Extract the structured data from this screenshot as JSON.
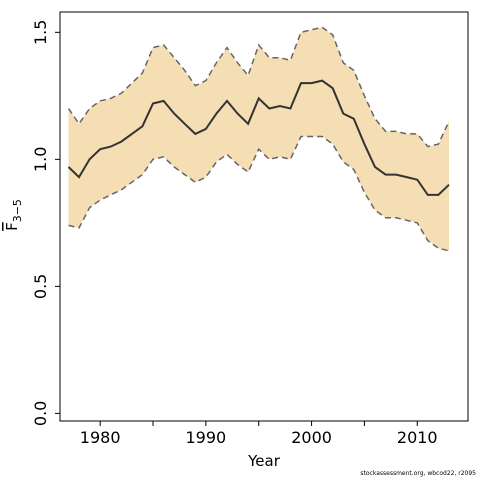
{
  "chart_data": {
    "type": "area",
    "title": "",
    "xlabel": "Year",
    "ylabel": "F",
    "ylabel_sub": "3−5",
    "xlim": [
      1976.2,
      2014.8
    ],
    "ylim": [
      -0.03,
      1.58
    ],
    "x_ticks": [
      1980,
      1990,
      2000,
      2010
    ],
    "y_ticks": [
      0.0,
      0.5,
      1.0,
      1.5
    ],
    "y_tick_labels": [
      "0.0",
      "0.5",
      "1.0",
      "1.5"
    ],
    "grid": false,
    "legend": "none",
    "colors": {
      "band": "#f5deb3",
      "line": "#333333",
      "bounds": "#666666"
    },
    "x": [
      1977,
      1978,
      1979,
      1980,
      1981,
      1982,
      1983,
      1984,
      1985,
      1986,
      1987,
      1988,
      1989,
      1990,
      1991,
      1992,
      1993,
      1994,
      1995,
      1996,
      1997,
      1998,
      1999,
      2000,
      2001,
      2002,
      2003,
      2004,
      2005,
      2006,
      2007,
      2008,
      2009,
      2010,
      2011,
      2012,
      2013
    ],
    "series": [
      {
        "role": "estimate",
        "values": [
          0.97,
          0.93,
          1.0,
          1.04,
          1.05,
          1.07,
          1.1,
          1.13,
          1.22,
          1.23,
          1.18,
          1.14,
          1.1,
          1.12,
          1.18,
          1.23,
          1.18,
          1.14,
          1.24,
          1.2,
          1.21,
          1.2,
          1.3,
          1.3,
          1.31,
          1.28,
          1.18,
          1.16,
          1.06,
          0.97,
          0.94,
          0.94,
          0.93,
          0.92,
          0.86,
          0.86,
          0.9
        ]
      },
      {
        "role": "upper",
        "values": [
          1.2,
          1.14,
          1.2,
          1.23,
          1.24,
          1.26,
          1.3,
          1.34,
          1.44,
          1.45,
          1.4,
          1.35,
          1.29,
          1.31,
          1.38,
          1.44,
          1.38,
          1.33,
          1.45,
          1.4,
          1.4,
          1.39,
          1.5,
          1.51,
          1.52,
          1.49,
          1.38,
          1.35,
          1.25,
          1.16,
          1.11,
          1.11,
          1.1,
          1.1,
          1.05,
          1.06,
          1.15
        ]
      },
      {
        "role": "lower",
        "values": [
          0.74,
          0.73,
          0.81,
          0.84,
          0.86,
          0.88,
          0.91,
          0.94,
          1.0,
          1.01,
          0.97,
          0.94,
          0.91,
          0.93,
          0.99,
          1.02,
          0.98,
          0.95,
          1.04,
          1.0,
          1.01,
          1.0,
          1.09,
          1.09,
          1.09,
          1.06,
          0.99,
          0.96,
          0.87,
          0.8,
          0.77,
          0.77,
          0.76,
          0.75,
          0.68,
          0.65,
          0.64
        ]
      }
    ]
  },
  "footer": {
    "credit": "stockassessment.org, wbcod22, r2095"
  }
}
